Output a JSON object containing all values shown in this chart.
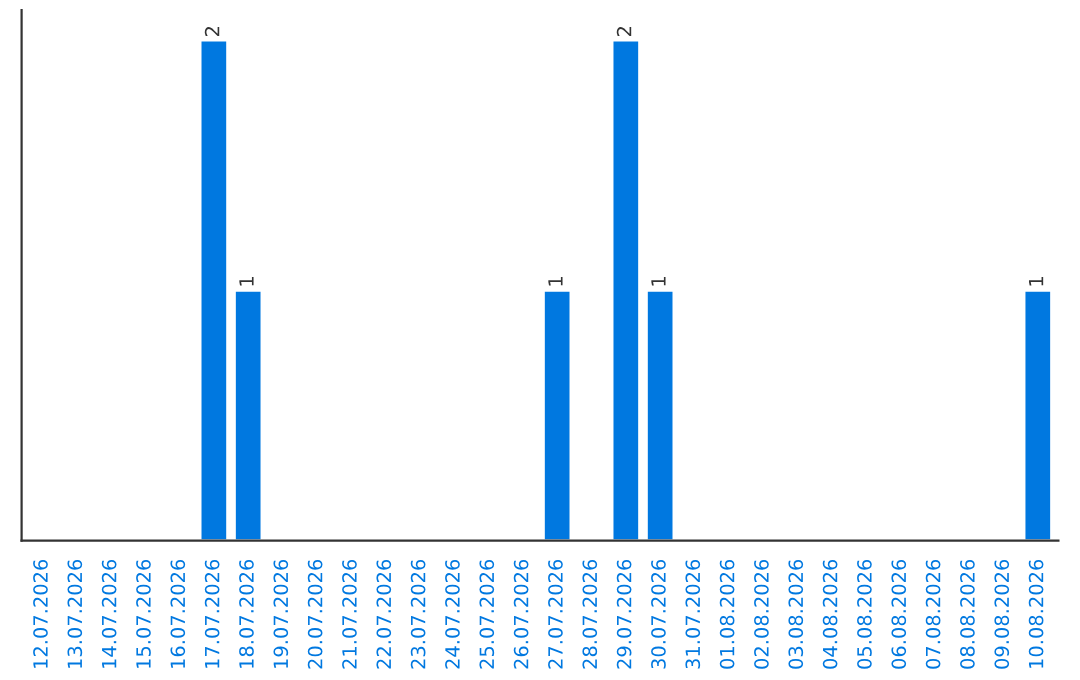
{
  "chart_data": {
    "type": "bar",
    "categories": [
      "12.07.2026",
      "13.07.2026",
      "14.07.2026",
      "15.07.2026",
      "16.07.2026",
      "17.07.2026",
      "18.07.2026",
      "19.07.2026",
      "20.07.2026",
      "21.07.2026",
      "22.07.2026",
      "23.07.2026",
      "24.07.2026",
      "25.07.2026",
      "26.07.2026",
      "27.07.2026",
      "28.07.2026",
      "29.07.2026",
      "30.07.2026",
      "31.07.2026",
      "01.08.2026",
      "02.08.2026",
      "03.08.2026",
      "04.08.2026",
      "05.08.2026",
      "06.08.2026",
      "07.08.2026",
      "08.08.2026",
      "09.08.2026",
      "10.08.2026"
    ],
    "values": [
      null,
      null,
      null,
      null,
      null,
      2,
      1,
      null,
      null,
      null,
      null,
      null,
      null,
      null,
      null,
      1,
      null,
      2,
      1,
      null,
      null,
      null,
      null,
      null,
      null,
      null,
      null,
      null,
      null,
      1
    ],
    "value_labels": [
      null,
      null,
      null,
      null,
      null,
      "2",
      "1",
      null,
      null,
      null,
      null,
      null,
      null,
      null,
      null,
      "1",
      null,
      "2",
      "1",
      null,
      null,
      null,
      null,
      null,
      null,
      null,
      null,
      null,
      null,
      "1"
    ],
    "color": "#0078e0",
    "tick_labels": "x",
    "grid": false,
    "legend": false
  }
}
